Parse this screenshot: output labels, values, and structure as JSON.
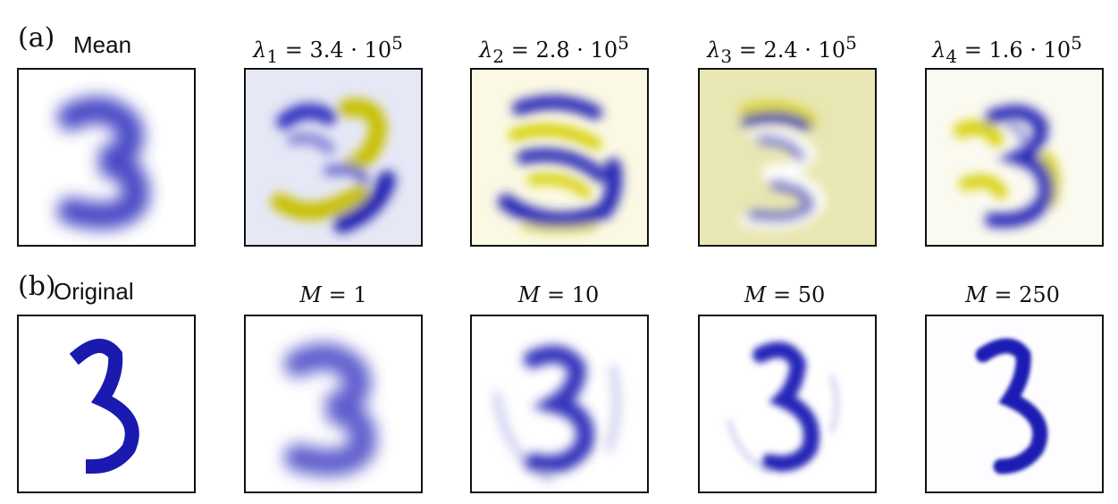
{
  "row_a": {
    "panel_label": "(a)",
    "first_title": "Mean",
    "eigen_titles": [
      {
        "symbol": "λ",
        "index": "1",
        "value": "3.4 · 10",
        "exponent": "5"
      },
      {
        "symbol": "λ",
        "index": "2",
        "value": "2.8 · 10",
        "exponent": "5"
      },
      {
        "symbol": "λ",
        "index": "3",
        "value": "2.4 · 10",
        "exponent": "5"
      },
      {
        "symbol": "λ",
        "index": "4",
        "value": "1.6 · 10",
        "exponent": "5"
      }
    ]
  },
  "row_b": {
    "panel_label": "(b)",
    "first_title": "Original",
    "m_titles": [
      {
        "symbol": "M",
        "value": "1"
      },
      {
        "symbol": "M",
        "value": "10"
      },
      {
        "symbol": "M",
        "value": "50"
      },
      {
        "symbol": "M",
        "value": "250"
      }
    ]
  },
  "colors": {
    "positive": "#2b2bbd",
    "negative": "#c9c000",
    "frame": "#111111"
  }
}
